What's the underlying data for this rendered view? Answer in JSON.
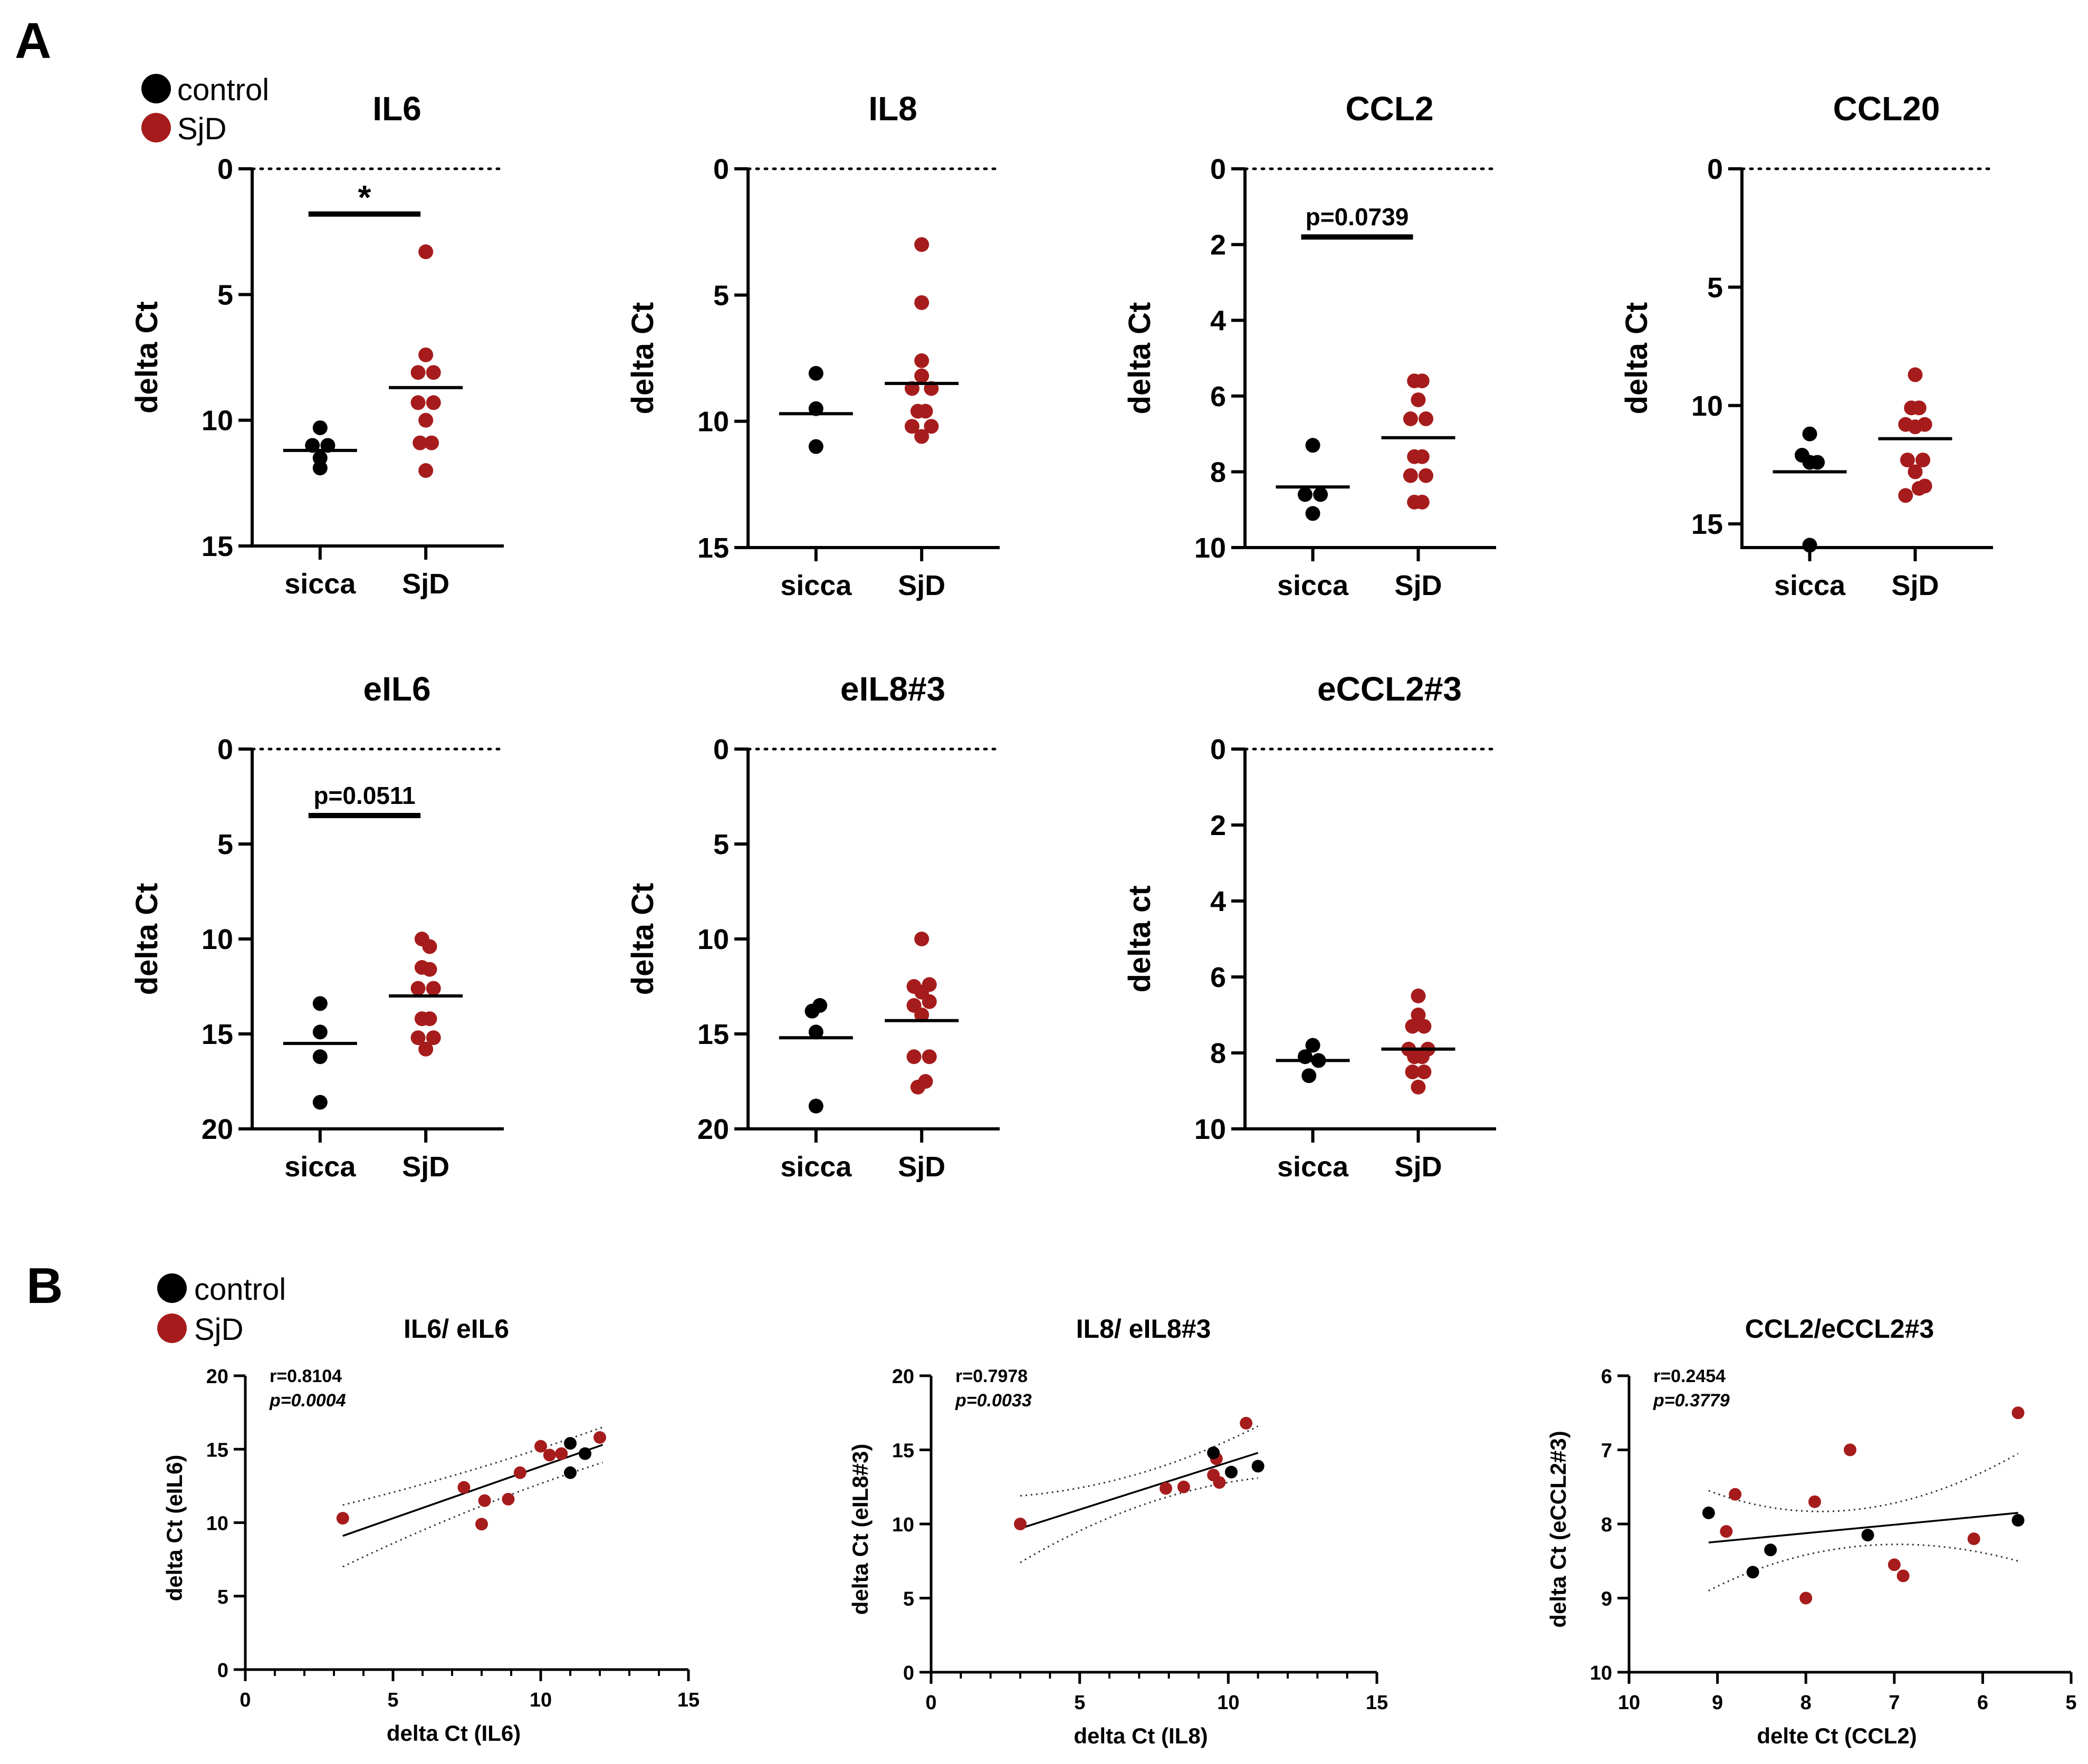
{
  "panel_labels": {
    "a": "A",
    "b": "B"
  },
  "legend": [
    {
      "label": "control",
      "color": "#000000"
    },
    {
      "label": "SjD",
      "color": "#a61c1c"
    }
  ],
  "colors": {
    "control": "#000000",
    "sjd": "#a61c1c"
  },
  "chart_data": [
    {
      "type": "scatter",
      "title": "IL6",
      "ylabel": "delta Ct",
      "ylim": [
        0,
        15
      ],
      "yticks": [
        0,
        5,
        10,
        15
      ],
      "y_inverted": true,
      "categories": [
        "sicca",
        "SjD"
      ],
      "groups": [
        {
          "name": "sicca",
          "color": "control",
          "median": 11.2,
          "points": [
            {
              "dx": 0,
              "y": 10.3
            },
            {
              "dx": -0.2,
              "y": 11.0
            },
            {
              "dx": 0.2,
              "y": 11.0
            },
            {
              "dx": 0,
              "y": 11.5
            },
            {
              "dx": 0,
              "y": 11.9
            }
          ]
        },
        {
          "name": "SjD",
          "color": "sjd",
          "median": 8.7,
          "points": [
            {
              "dx": 0,
              "y": 3.3
            },
            {
              "dx": 0,
              "y": 7.4
            },
            {
              "dx": -0.2,
              "y": 8.1
            },
            {
              "dx": 0.2,
              "y": 8.1
            },
            {
              "dx": -0.2,
              "y": 9.3
            },
            {
              "dx": 0.2,
              "y": 9.3
            },
            {
              "dx": 0,
              "y": 10.0
            },
            {
              "dx": -0.15,
              "y": 10.9
            },
            {
              "dx": 0.15,
              "y": 10.9
            },
            {
              "dx": 0,
              "y": 12.0
            }
          ]
        }
      ],
      "significance": {
        "label": "*",
        "y": 1.8
      }
    },
    {
      "type": "scatter",
      "title": "IL8",
      "ylabel": "delta Ct",
      "ylim": [
        0,
        15
      ],
      "yticks": [
        0,
        5,
        10,
        15
      ],
      "y_inverted": true,
      "categories": [
        "sicca",
        "SjD"
      ],
      "groups": [
        {
          "name": "sicca",
          "color": "control",
          "median": 9.7,
          "points": [
            {
              "dx": 0,
              "y": 8.1
            },
            {
              "dx": 0,
              "y": 9.5
            },
            {
              "dx": 0,
              "y": 11.0
            }
          ]
        },
        {
          "name": "SjD",
          "color": "sjd",
          "median": 8.5,
          "points": [
            {
              "dx": 0,
              "y": 3.0
            },
            {
              "dx": 0,
              "y": 5.3
            },
            {
              "dx": 0,
              "y": 7.6
            },
            {
              "dx": -0.25,
              "y": 8.7
            },
            {
              "dx": 0.25,
              "y": 8.7
            },
            {
              "dx": 0,
              "y": 8.2
            },
            {
              "dx": -0.1,
              "y": 9.6
            },
            {
              "dx": 0.1,
              "y": 9.6
            },
            {
              "dx": -0.25,
              "y": 10.2
            },
            {
              "dx": 0.25,
              "y": 10.2
            },
            {
              "dx": 0,
              "y": 10.6
            }
          ]
        }
      ]
    },
    {
      "type": "scatter",
      "title": "CCL2",
      "ylabel": "delta Ct",
      "ylim": [
        0,
        10
      ],
      "yticks": [
        0,
        2,
        4,
        6,
        8,
        10
      ],
      "y_inverted": true,
      "categories": [
        "sicca",
        "SjD"
      ],
      "groups": [
        {
          "name": "sicca",
          "color": "control",
          "median": 8.4,
          "points": [
            {
              "dx": 0,
              "y": 7.3
            },
            {
              "dx": -0.2,
              "y": 8.6
            },
            {
              "dx": 0.2,
              "y": 8.6
            },
            {
              "dx": 0,
              "y": 9.1
            }
          ]
        },
        {
          "name": "SjD",
          "color": "sjd",
          "median": 7.1,
          "points": [
            {
              "dx": -0.1,
              "y": 5.6
            },
            {
              "dx": 0.1,
              "y": 5.6
            },
            {
              "dx": 0,
              "y": 6.1
            },
            {
              "dx": -0.2,
              "y": 6.6
            },
            {
              "dx": 0.2,
              "y": 6.6
            },
            {
              "dx": -0.1,
              "y": 7.6
            },
            {
              "dx": 0.1,
              "y": 7.6
            },
            {
              "dx": -0.2,
              "y": 8.1
            },
            {
              "dx": 0.2,
              "y": 8.1
            },
            {
              "dx": -0.1,
              "y": 8.8
            },
            {
              "dx": 0.1,
              "y": 8.8
            }
          ]
        }
      ],
      "significance": {
        "label": "p=0.0739",
        "y": 1.8
      }
    },
    {
      "type": "scatter",
      "title": "CCL20",
      "ylabel": "delta Ct",
      "ylim": [
        0,
        16
      ],
      "yticks": [
        0,
        5,
        10,
        15
      ],
      "y_inverted": true,
      "categories": [
        "sicca",
        "SjD"
      ],
      "groups": [
        {
          "name": "sicca",
          "color": "control",
          "median": 12.8,
          "points": [
            {
              "dx": 0,
              "y": 11.2
            },
            {
              "dx": -0.2,
              "y": 12.1
            },
            {
              "dx": 0,
              "y": 12.4
            },
            {
              "dx": 0.2,
              "y": 12.4
            },
            {
              "dx": 0,
              "y": 15.9
            }
          ]
        },
        {
          "name": "SjD",
          "color": "sjd",
          "median": 11.4,
          "points": [
            {
              "dx": 0,
              "y": 8.7
            },
            {
              "dx": -0.1,
              "y": 10.1
            },
            {
              "dx": 0.1,
              "y": 10.1
            },
            {
              "dx": -0.25,
              "y": 10.8
            },
            {
              "dx": 0,
              "y": 10.9
            },
            {
              "dx": 0.25,
              "y": 10.8
            },
            {
              "dx": -0.2,
              "y": 12.3
            },
            {
              "dx": 0.2,
              "y": 12.3
            },
            {
              "dx": 0,
              "y": 12.8
            },
            {
              "dx": -0.25,
              "y": 13.8
            },
            {
              "dx": 0.1,
              "y": 13.5
            },
            {
              "dx": 0.25,
              "y": 13.4
            }
          ]
        }
      ]
    },
    {
      "type": "scatter",
      "title": "eIL6",
      "ylabel": "delta Ct",
      "ylim": [
        0,
        20
      ],
      "yticks": [
        0,
        5,
        10,
        15,
        20
      ],
      "y_inverted": true,
      "categories": [
        "sicca",
        "SjD"
      ],
      "groups": [
        {
          "name": "sicca",
          "color": "control",
          "median": 15.5,
          "points": [
            {
              "dx": 0,
              "y": 13.4
            },
            {
              "dx": 0,
              "y": 14.9
            },
            {
              "dx": 0,
              "y": 16.2
            },
            {
              "dx": 0,
              "y": 18.6
            }
          ]
        },
        {
          "name": "SjD",
          "color": "sjd",
          "median": 13.0,
          "points": [
            {
              "dx": -0.1,
              "y": 10.0
            },
            {
              "dx": 0.1,
              "y": 10.4
            },
            {
              "dx": -0.1,
              "y": 11.5
            },
            {
              "dx": 0.1,
              "y": 11.6
            },
            {
              "dx": -0.2,
              "y": 12.6
            },
            {
              "dx": 0.2,
              "y": 12.6
            },
            {
              "dx": -0.1,
              "y": 14.2
            },
            {
              "dx": 0.1,
              "y": 14.2
            },
            {
              "dx": -0.2,
              "y": 15.2
            },
            {
              "dx": 0.2,
              "y": 15.2
            },
            {
              "dx": 0,
              "y": 15.8
            }
          ]
        }
      ],
      "significance": {
        "label": "p=0.0511",
        "y": 3.5
      }
    },
    {
      "type": "scatter",
      "title": "eIL8#3",
      "ylabel": "delta Ct",
      "ylim": [
        0,
        20
      ],
      "yticks": [
        0,
        5,
        10,
        15,
        20
      ],
      "y_inverted": true,
      "categories": [
        "sicca",
        "SjD"
      ],
      "groups": [
        {
          "name": "sicca",
          "color": "control",
          "median": 15.2,
          "points": [
            {
              "dx": -0.1,
              "y": 13.8
            },
            {
              "dx": 0.1,
              "y": 13.5
            },
            {
              "dx": 0,
              "y": 14.9
            },
            {
              "dx": 0,
              "y": 18.8
            }
          ]
        },
        {
          "name": "SjD",
          "color": "sjd",
          "median": 14.3,
          "points": [
            {
              "dx": 0,
              "y": 10.0
            },
            {
              "dx": -0.2,
              "y": 12.5
            },
            {
              "dx": 0.2,
              "y": 12.4
            },
            {
              "dx": 0,
              "y": 12.8
            },
            {
              "dx": -0.2,
              "y": 13.5
            },
            {
              "dx": 0.2,
              "y": 13.3
            },
            {
              "dx": 0,
              "y": 14.0
            },
            {
              "dx": -0.2,
              "y": 16.2
            },
            {
              "dx": 0.2,
              "y": 16.2
            },
            {
              "dx": -0.1,
              "y": 17.8
            },
            {
              "dx": 0.1,
              "y": 17.5
            }
          ]
        }
      ]
    },
    {
      "type": "scatter",
      "title": "eCCL2#3",
      "ylabel": "delta ct",
      "ylim": [
        0,
        10
      ],
      "yticks": [
        0,
        2,
        4,
        6,
        8,
        10
      ],
      "y_inverted": true,
      "categories": [
        "sicca",
        "SjD"
      ],
      "groups": [
        {
          "name": "sicca",
          "color": "control",
          "median": 8.2,
          "points": [
            {
              "dx": 0,
              "y": 7.8
            },
            {
              "dx": -0.2,
              "y": 8.1
            },
            {
              "dx": 0.15,
              "y": 8.2
            },
            {
              "dx": -0.1,
              "y": 8.6
            }
          ]
        },
        {
          "name": "SjD",
          "color": "sjd",
          "median": 7.9,
          "points": [
            {
              "dx": 0,
              "y": 6.5
            },
            {
              "dx": 0,
              "y": 7.0
            },
            {
              "dx": -0.15,
              "y": 7.3
            },
            {
              "dx": 0.15,
              "y": 7.3
            },
            {
              "dx": -0.25,
              "y": 7.9
            },
            {
              "dx": 0.25,
              "y": 7.9
            },
            {
              "dx": -0.1,
              "y": 8.1
            },
            {
              "dx": 0.1,
              "y": 8.1
            },
            {
              "dx": -0.15,
              "y": 8.5
            },
            {
              "dx": 0.15,
              "y": 8.5
            },
            {
              "dx": 0,
              "y": 8.9
            }
          ]
        }
      ]
    },
    {
      "type": "scatter",
      "title": "IL6/ eIL6",
      "xlabel": "delta Ct (IL6)",
      "ylabel": "delta Ct (eIL6)",
      "xlim": [
        0,
        15
      ],
      "ylim": [
        0,
        20
      ],
      "xticks": [
        0,
        5,
        10,
        15
      ],
      "yticks": [
        0,
        5,
        10,
        15,
        20
      ],
      "x_inverted": false,
      "stats": {
        "r": "r=0.8104",
        "p": "p=0.0004"
      },
      "fit": {
        "x": [
          3.3,
          12.1
        ],
        "y": [
          9.1,
          15.3
        ]
      },
      "ci_upper": {
        "x": [
          3.3,
          7.7,
          12.1
        ],
        "y": [
          11.2,
          13.6,
          16.5
        ]
      },
      "ci_lower": {
        "x": [
          3.3,
          7.7,
          12.1
        ],
        "y": [
          7.0,
          10.9,
          14.1
        ]
      },
      "control": [
        {
          "x": 11.0,
          "y": 15.4
        },
        {
          "x": 11.5,
          "y": 14.7
        },
        {
          "x": 11.0,
          "y": 13.4
        }
      ],
      "sjd": [
        {
          "x": 3.3,
          "y": 10.3
        },
        {
          "x": 7.4,
          "y": 12.4
        },
        {
          "x": 8.1,
          "y": 11.5
        },
        {
          "x": 8.0,
          "y": 9.9
        },
        {
          "x": 8.9,
          "y": 11.6
        },
        {
          "x": 9.3,
          "y": 13.4
        },
        {
          "x": 10.0,
          "y": 15.2
        },
        {
          "x": 10.3,
          "y": 14.6
        },
        {
          "x": 10.7,
          "y": 14.7
        },
        {
          "x": 12.0,
          "y": 15.8
        }
      ]
    },
    {
      "type": "scatter",
      "title": "IL8/ eIL8#3",
      "xlabel": "delta Ct (IL8)",
      "ylabel": "delta Ct (eIL8#3)",
      "xlim": [
        0,
        15
      ],
      "ylim": [
        0,
        20
      ],
      "xticks": [
        0,
        5,
        10,
        15
      ],
      "yticks": [
        0,
        5,
        10,
        15,
        20
      ],
      "x_inverted": false,
      "stats": {
        "r": "r=0.7978",
        "p": "p=0.0033"
      },
      "fit": {
        "x": [
          3.0,
          11.0
        ],
        "y": [
          9.7,
          14.8
        ]
      },
      "ci_upper": {
        "x": [
          3.0,
          7.0,
          11.0
        ],
        "y": [
          11.9,
          13.4,
          16.6
        ]
      },
      "ci_lower": {
        "x": [
          3.0,
          7.0,
          11.0
        ],
        "y": [
          7.4,
          11.2,
          13.1
        ]
      },
      "control": [
        {
          "x": 9.5,
          "y": 14.8
        },
        {
          "x": 10.1,
          "y": 13.5
        },
        {
          "x": 11.0,
          "y": 13.9
        }
      ],
      "sjd": [
        {
          "x": 3.0,
          "y": 10.0
        },
        {
          "x": 7.9,
          "y": 12.4
        },
        {
          "x": 8.5,
          "y": 12.5
        },
        {
          "x": 9.5,
          "y": 13.3
        },
        {
          "x": 9.6,
          "y": 14.4
        },
        {
          "x": 9.7,
          "y": 12.8
        },
        {
          "x": 10.6,
          "y": 16.8
        }
      ]
    },
    {
      "type": "scatter",
      "title": "CCL2/eCCL2#3",
      "xlabel": "delte Ct (CCL2)",
      "ylabel": "delta Ct (eCCL2#3)",
      "xlim": [
        10,
        5
      ],
      "ylim": [
        10,
        6
      ],
      "xticks": [
        10,
        9,
        8,
        7,
        6,
        5
      ],
      "yticks": [
        6,
        7,
        8,
        9,
        10
      ],
      "x_inverted": true,
      "y_inverted": true,
      "stats": {
        "r": "r=0.2454",
        "p": "p=0.3779"
      },
      "fit": {
        "x": [
          9.1,
          5.6
        ],
        "y": [
          8.25,
          7.85
        ]
      },
      "ci_upper": {
        "x": [
          9.1,
          7.4,
          5.6
        ],
        "y": [
          7.55,
          7.8,
          7.05
        ]
      },
      "ci_lower": {
        "x": [
          9.1,
          7.4,
          5.6
        ],
        "y": [
          8.9,
          8.3,
          8.5
        ]
      },
      "control": [
        {
          "x": 9.1,
          "y": 7.85
        },
        {
          "x": 8.6,
          "y": 8.65
        },
        {
          "x": 8.4,
          "y": 8.35
        },
        {
          "x": 7.3,
          "y": 8.15
        },
        {
          "x": 5.6,
          "y": 7.95
        }
      ],
      "sjd": [
        {
          "x": 8.9,
          "y": 8.1
        },
        {
          "x": 8.8,
          "y": 7.6
        },
        {
          "x": 8.0,
          "y": 9.0
        },
        {
          "x": 7.9,
          "y": 7.7
        },
        {
          "x": 7.5,
          "y": 7.0
        },
        {
          "x": 7.0,
          "y": 8.55
        },
        {
          "x": 6.9,
          "y": 8.7
        },
        {
          "x": 6.1,
          "y": 8.2
        },
        {
          "x": 5.6,
          "y": 6.5
        }
      ]
    }
  ]
}
